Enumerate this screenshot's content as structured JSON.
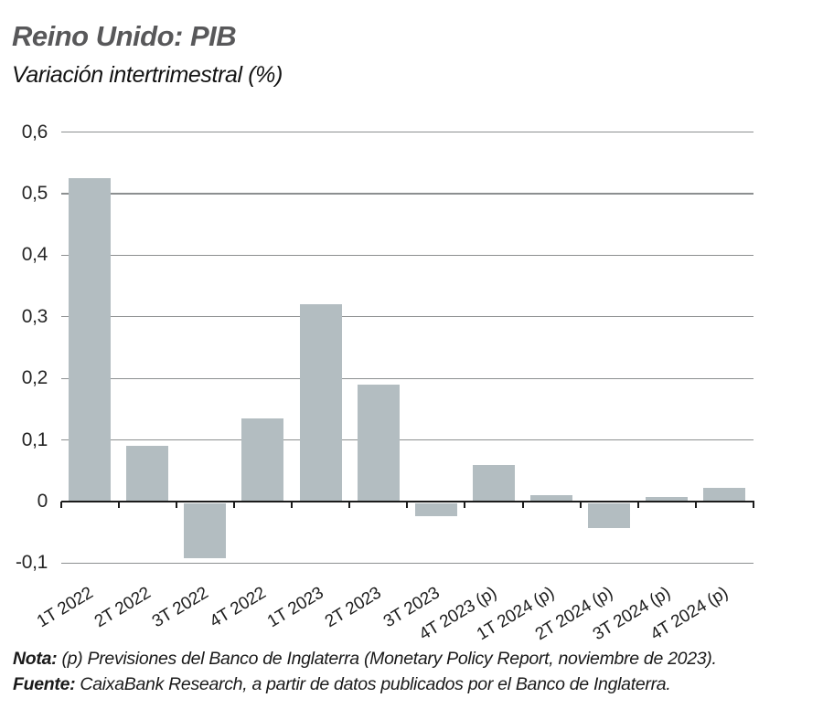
{
  "header": {
    "title": "Reino Unido: PIB",
    "subtitle": "Variación intertrimestral (%)"
  },
  "chart_data": {
    "type": "bar",
    "title": "Reino Unido: PIB",
    "subtitle": "Variación intertrimestral (%)",
    "categories": [
      "1T 2022",
      "2T 2022",
      "3T 2022",
      "4T 2022",
      "1T 2023",
      "2T 2023",
      "3T 2023",
      "4T 2023 (p)",
      "1T 2024 (p)",
      "2T 2024 (p)",
      "3T 2024 (p)",
      "4T 2024 (p)"
    ],
    "values": [
      0.525,
      0.09,
      -0.09,
      0.135,
      0.32,
      0.19,
      -0.022,
      0.06,
      0.01,
      -0.041,
      0.008,
      0.022
    ],
    "ylabel": "",
    "xlabel": "",
    "ylim": [
      -0.1,
      0.6
    ],
    "yticks": [
      0.6,
      0.5,
      0.4,
      0.3,
      0.2,
      0.1,
      0,
      -0.1
    ],
    "ytick_labels": [
      "0,6",
      "0,5",
      "0,4",
      "0,3",
      "0,2",
      "0,1",
      "0",
      "-0,1"
    ],
    "grid": "horizontal",
    "legend": "none",
    "bar_color": "#b3bdc1",
    "gridline_color": "#8c8f90",
    "axis_color": "#1b1b1b"
  },
  "footer": {
    "note_label": "Nota:",
    "note_text": " (p) Previsiones del Banco de Inglaterra (Monetary Policy Report, noviembre de 2023).",
    "source_label": "Fuente:",
    "source_text": " CaixaBank Research, a partir de datos publicados por el Banco de Inglaterra."
  }
}
